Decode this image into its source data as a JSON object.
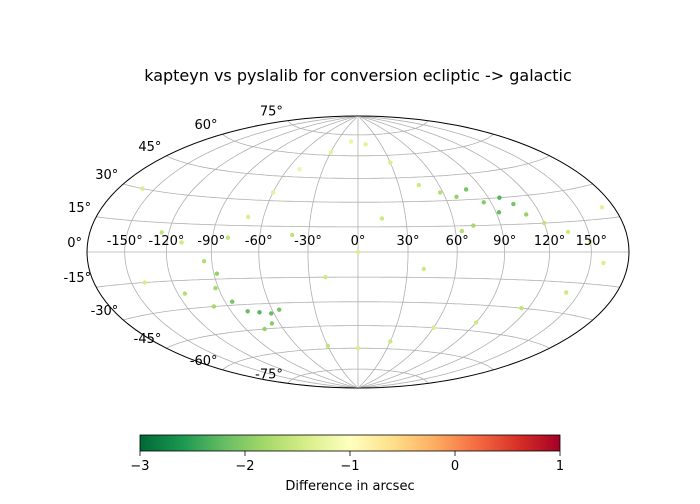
{
  "chart_data": {
    "type": "scatter",
    "projection": "hammer-aitoff",
    "title": "kapteyn vs pyslalib for conversion ecliptic -> galactic",
    "grid": true,
    "longitude_ticks": [
      -150,
      -120,
      -90,
      -60,
      -30,
      0,
      30,
      60,
      90,
      120,
      150
    ],
    "longitude_tick_labels": [
      "-150°",
      "-120°",
      "-90°",
      "-60°",
      "-30°",
      "0°",
      "30°",
      "60°",
      "90°",
      "120°",
      "150°"
    ],
    "latitude_ticks": [
      -75,
      -60,
      -45,
      -30,
      -15,
      0,
      15,
      30,
      45,
      60,
      75
    ],
    "latitude_tick_labels": [
      "-75°",
      "-60°",
      "-45°",
      "-30°",
      "-15°",
      "0°",
      "15°",
      "30°",
      "45°",
      "60°",
      "75°"
    ],
    "colorbar": {
      "label": "Difference in arcsec",
      "range": [
        -3,
        1
      ],
      "ticks": [
        -3,
        -2,
        -1,
        0,
        1
      ],
      "tick_labels": [
        "−3",
        "−2",
        "−1",
        "0",
        "1"
      ],
      "colormap": "RdYlGn_r",
      "stops": [
        "#006837",
        "#1a9850",
        "#66bd63",
        "#a6d96a",
        "#d9ef8b",
        "#ffffbf",
        "#fee08b",
        "#fdae61",
        "#f46d43",
        "#d73027",
        "#a50026"
      ]
    },
    "points": [
      {
        "lon": -125,
        "lat": 10,
        "value": -1.6
      },
      {
        "lon": -110,
        "lat": 5,
        "value": -1.5
      },
      {
        "lon": -95,
        "lat": -5,
        "value": -1.7
      },
      {
        "lon": -88,
        "lat": -12,
        "value": -1.9
      },
      {
        "lon": -92,
        "lat": -20,
        "value": -1.8
      },
      {
        "lon": -85,
        "lat": -28,
        "value": -2.1
      },
      {
        "lon": -78,
        "lat": -34,
        "value": -2.2
      },
      {
        "lon": -70,
        "lat": -35,
        "value": -2.3
      },
      {
        "lon": -62,
        "lat": -36,
        "value": -2.2
      },
      {
        "lon": -55,
        "lat": -34,
        "value": -2.1
      },
      {
        "lon": -66,
        "lat": -42,
        "value": -2.0
      },
      {
        "lon": -75,
        "lat": -45,
        "value": -1.9
      },
      {
        "lon": -100,
        "lat": -30,
        "value": -1.8
      },
      {
        "lon": -115,
        "lat": -22,
        "value": -1.7
      },
      {
        "lon": -80,
        "lat": 8,
        "value": -1.6
      },
      {
        "lon": -70,
        "lat": 20,
        "value": -1.4
      },
      {
        "lon": -60,
        "lat": 35,
        "value": -1.3
      },
      {
        "lon": -50,
        "lat": 50,
        "value": -1.2
      },
      {
        "lon": -30,
        "lat": 62,
        "value": -1.3
      },
      {
        "lon": -10,
        "lat": 70,
        "value": -1.2
      },
      {
        "lon": 10,
        "lat": 68,
        "value": -1.3
      },
      {
        "lon": 30,
        "lat": 55,
        "value": -1.4
      },
      {
        "lon": 45,
        "lat": 40,
        "value": -1.5
      },
      {
        "lon": 58,
        "lat": 35,
        "value": -1.7
      },
      {
        "lon": 68,
        "lat": 32,
        "value": -1.9
      },
      {
        "lon": 78,
        "lat": 36,
        "value": -2.1
      },
      {
        "lon": 85,
        "lat": 28,
        "value": -2.0
      },
      {
        "lon": 92,
        "lat": 22,
        "value": -2.2
      },
      {
        "lon": 98,
        "lat": 30,
        "value": -2.3
      },
      {
        "lon": 105,
        "lat": 26,
        "value": -2.1
      },
      {
        "lon": 110,
        "lat": 20,
        "value": -1.9
      },
      {
        "lon": 72,
        "lat": 15,
        "value": -1.8
      },
      {
        "lon": 64,
        "lat": 12,
        "value": -1.7
      },
      {
        "lon": 120,
        "lat": 15,
        "value": -1.6
      },
      {
        "lon": 135,
        "lat": 10,
        "value": -1.5
      },
      {
        "lon": 150,
        "lat": 5,
        "value": -1.6
      },
      {
        "lon": 160,
        "lat": -5,
        "value": -1.4
      },
      {
        "lon": 140,
        "lat": -20,
        "value": -1.5
      },
      {
        "lon": 115,
        "lat": -30,
        "value": -1.6
      },
      {
        "lon": 90,
        "lat": -40,
        "value": -1.5
      },
      {
        "lon": 60,
        "lat": -45,
        "value": -1.4
      },
      {
        "lon": 30,
        "lat": -55,
        "value": -1.5
      },
      {
        "lon": 0,
        "lat": -60,
        "value": -1.4
      },
      {
        "lon": -30,
        "lat": -58,
        "value": -1.6
      },
      {
        "lon": -20,
        "lat": -15,
        "value": -1.5
      },
      {
        "lon": 0,
        "lat": 0,
        "value": -1.4
      },
      {
        "lon": 15,
        "lat": 20,
        "value": -1.5
      },
      {
        "lon": -40,
        "lat": 10,
        "value": -1.6
      },
      {
        "lon": 40,
        "lat": -10,
        "value": -1.5
      },
      {
        "lon": -140,
        "lat": -15,
        "value": -1.4
      },
      {
        "lon": 170,
        "lat": 20,
        "value": -1.3
      },
      {
        "lon": -160,
        "lat": 30,
        "value": -1.4
      }
    ]
  }
}
